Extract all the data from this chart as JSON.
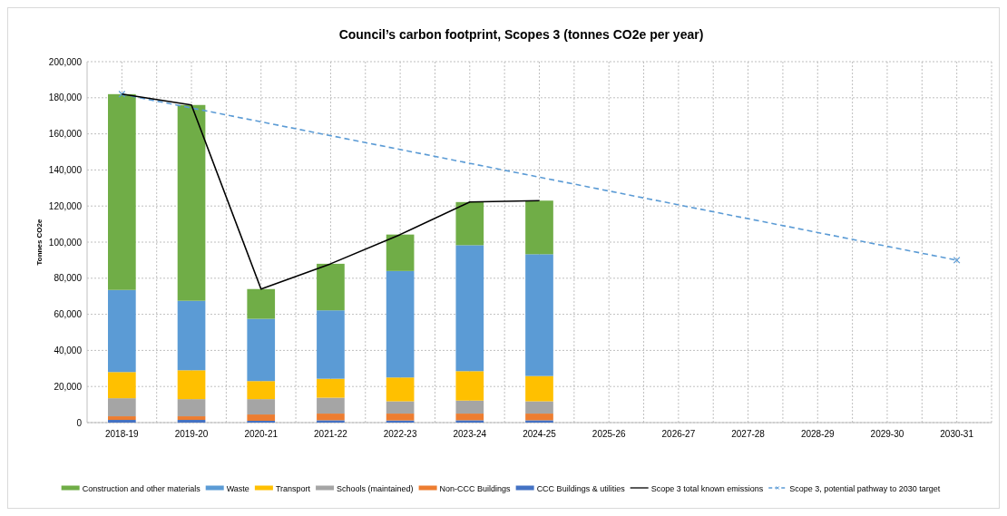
{
  "chart_data": {
    "type": "bar",
    "stacked": true,
    "title": "Council’s carbon footprint, Scopes 3 (tonnes CO2e per year)",
    "ylabel": "Tonnes CO2e",
    "categories": [
      "2018-19",
      "2019-20",
      "2020-21",
      "2021-22",
      "2022-23",
      "2023-24",
      "2024-25",
      "2025-26",
      "2026-27",
      "2027-28",
      "2028-29",
      "2029-30",
      "2030-31"
    ],
    "series": [
      {
        "name": "CCC Buildings & utilities",
        "color": "#4472c4",
        "values": [
          1500,
          1500,
          1000,
          1300,
          1200,
          1300,
          1300,
          null,
          null,
          null,
          null,
          null,
          null
        ]
      },
      {
        "name": "Non-CCC Buildings",
        "color": "#ed7d31",
        "values": [
          2000,
          2000,
          3500,
          3700,
          3800,
          3700,
          3700,
          null,
          null,
          null,
          null,
          null,
          null
        ]
      },
      {
        "name": "Schools (maintained)",
        "color": "#a5a5a5",
        "values": [
          10000,
          9500,
          8500,
          8800,
          6800,
          7200,
          6800,
          null,
          null,
          null,
          null,
          null,
          null
        ]
      },
      {
        "name": "Transport",
        "color": "#ffc000",
        "values": [
          14500,
          16000,
          10000,
          10500,
          13200,
          16300,
          14000,
          null,
          null,
          null,
          null,
          null,
          null
        ]
      },
      {
        "name": "Waste",
        "color": "#5b9bd5",
        "values": [
          45500,
          38500,
          34500,
          37900,
          59000,
          69800,
          67500,
          null,
          null,
          null,
          null,
          null,
          null
        ]
      },
      {
        "name": "Construction and other materials",
        "color": "#70ad47",
        "values": [
          108500,
          108500,
          16500,
          25800,
          20200,
          23900,
          29700,
          null,
          null,
          null,
          null,
          null,
          null
        ]
      },
      {
        "name": "Scope 3 total known emissions",
        "type": "line",
        "color": "#000000",
        "marker": "none",
        "line_style": "solid",
        "values": [
          182000,
          176000,
          74000,
          88000,
          104200,
          122200,
          123000,
          null,
          null,
          null,
          null,
          null,
          null
        ]
      },
      {
        "name": "Scope 3, potential pathway to 2030 target",
        "type": "line",
        "color": "#5b9bd5",
        "marker": "cross",
        "line_style": "dashed",
        "x": [
          "2018-19",
          "2030-31"
        ],
        "values": [
          182000,
          90000
        ]
      }
    ],
    "ylim": [
      0,
      200000
    ],
    "yticks": [
      {
        "value": 0,
        "label": "0"
      },
      {
        "value": 20000,
        "label": "20,000"
      },
      {
        "value": 40000,
        "label": "40,000"
      },
      {
        "value": 60000,
        "label": "60,000"
      },
      {
        "value": 80000,
        "label": "80,000"
      },
      {
        "value": 100000,
        "label": "100,000"
      },
      {
        "value": 120000,
        "label": "120,000"
      },
      {
        "value": 140000,
        "label": "140,000"
      },
      {
        "value": 160000,
        "label": "160,000"
      },
      {
        "value": 180000,
        "label": "180,000"
      },
      {
        "value": 200000,
        "label": "200,000"
      }
    ],
    "grid": true,
    "legend": "bottom"
  }
}
